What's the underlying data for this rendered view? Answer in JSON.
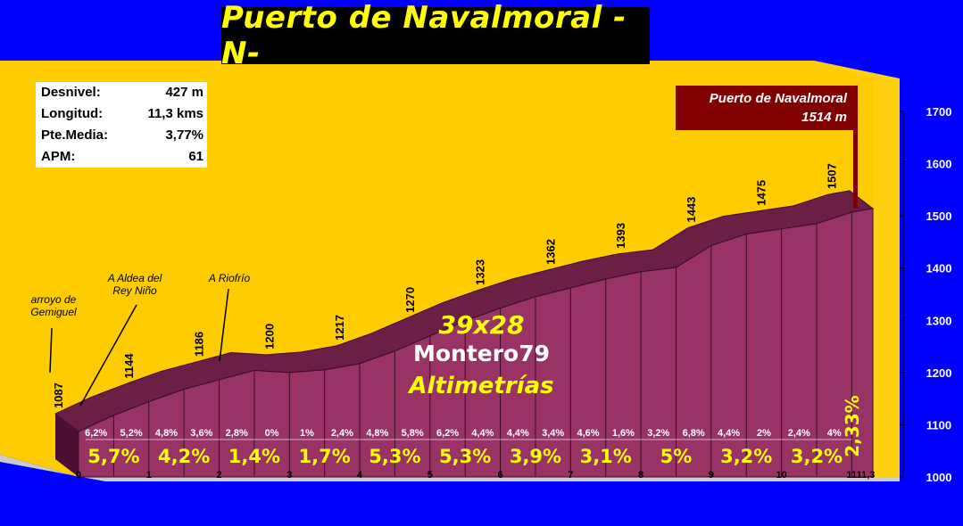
{
  "title": "Puerto de Navalmoral -N-",
  "stats": [
    {
      "label": "Desnivel:",
      "value": "427 m"
    },
    {
      "label": "Longitud:",
      "value": "11,3 kms"
    },
    {
      "label": "Pte.Media:",
      "value": "3,77%"
    },
    {
      "label": "APM:",
      "value": "61"
    }
  ],
  "summit": {
    "name": "Puerto de Navalmoral",
    "elevation": "1514 m"
  },
  "credits": {
    "scale": "39x28",
    "author": "Montero79",
    "brand": "Altimetrías"
  },
  "colors": {
    "background": "#0000ff",
    "panel": "#ffcc00",
    "profile": "#993366",
    "profile_top": "#6b1f45",
    "text_yellow": "#ffff00",
    "summit_box": "#800000"
  },
  "chart_data": {
    "type": "area",
    "xlabel": "",
    "ylabel": "",
    "xlim": [
      0,
      11.3
    ],
    "ylim": [
      1000,
      1700
    ],
    "y_ticks": [
      "1000",
      "1100",
      "1200",
      "1300",
      "1400",
      "1500",
      "1600",
      "1700"
    ],
    "x_ticks": [
      "0",
      "1",
      "2",
      "3",
      "4",
      "5",
      "6",
      "7",
      "8",
      "9",
      "10",
      "11",
      "11,3"
    ],
    "profile": {
      "x": [
        0,
        0.5,
        1,
        1.5,
        2,
        2.5,
        3,
        3.5,
        4,
        4.5,
        5,
        5.5,
        6,
        6.5,
        7,
        7.5,
        8,
        8.5,
        9,
        9.5,
        10,
        10.5,
        11,
        11.3
      ],
      "y": [
        1087,
        1118,
        1144,
        1168,
        1186,
        1204,
        1200,
        1205,
        1217,
        1241,
        1270,
        1299,
        1323,
        1345,
        1362,
        1379,
        1393,
        1401,
        1443,
        1465,
        1475,
        1485,
        1507,
        1514
      ]
    },
    "point_labels": [
      {
        "x": 0,
        "y": 1087,
        "label": "1087"
      },
      {
        "x": 1,
        "y": 1144,
        "label": "1144"
      },
      {
        "x": 2,
        "y": 1186,
        "label": "1186"
      },
      {
        "x": 3,
        "y": 1200,
        "label": "1200"
      },
      {
        "x": 4,
        "y": 1217,
        "label": "1217"
      },
      {
        "x": 5,
        "y": 1270,
        "label": "1270"
      },
      {
        "x": 6,
        "y": 1323,
        "label": "1323"
      },
      {
        "x": 7,
        "y": 1362,
        "label": "1362"
      },
      {
        "x": 8,
        "y": 1393,
        "label": "1393"
      },
      {
        "x": 9,
        "y": 1443,
        "label": "1443"
      },
      {
        "x": 10,
        "y": 1475,
        "label": "1475"
      },
      {
        "x": 11,
        "y": 1507,
        "label": "1507"
      }
    ],
    "half_km_gradients": [
      "6,2%",
      "5,2%",
      "4,8%",
      "3,6%",
      "2,8%",
      "0%",
      "1%",
      "2,4%",
      "4,8%",
      "5,8%",
      "6,2%",
      "4,4%",
      "4,4%",
      "3,4%",
      "4,6%",
      "1,6%",
      "3,2%",
      "6,8%",
      "4,4%",
      "2%",
      "2,4%",
      "4%"
    ],
    "km_gradients": [
      "5,7%",
      "4,2%",
      "1,4%",
      "1,7%",
      "5,3%",
      "5,3%",
      "3,9%",
      "3,1%",
      "5%",
      "3,2%",
      "3,2%"
    ],
    "last_gradient": "2,33%",
    "annotations": [
      {
        "text": "arroyo de Gemiguel",
        "lines": [
          "arroyo de",
          "Gemiguel"
        ],
        "x": 0
      },
      {
        "text": "A Aldea del Rey Niño",
        "lines": [
          "A Aldea del",
          "Rey Niño"
        ],
        "x": 0.3
      },
      {
        "text": "A Riofrío",
        "lines": [
          "A Riofrío"
        ],
        "x": 2.1
      }
    ]
  }
}
